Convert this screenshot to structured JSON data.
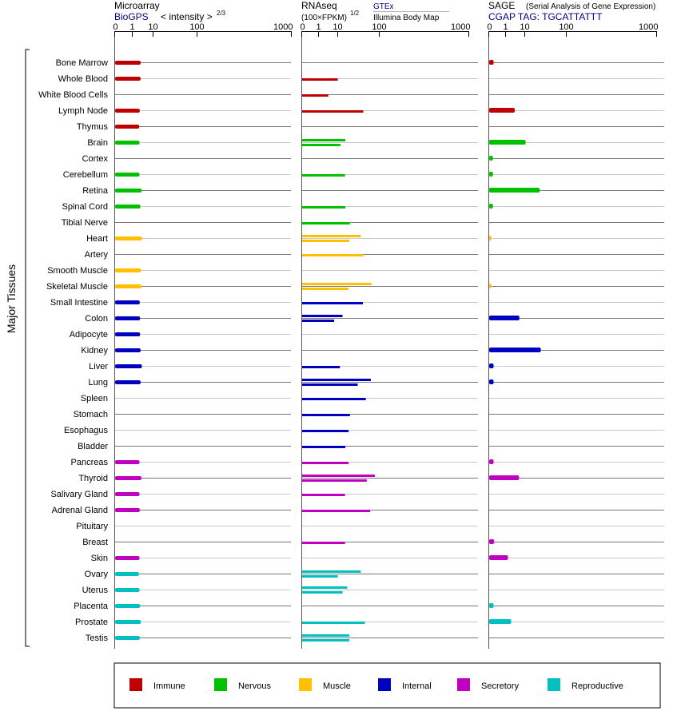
{
  "panels": {
    "microarray": {
      "title": "Microarray",
      "source": "BioGPS",
      "scale_label": "< intensity >",
      "scale_exp": "2/3"
    },
    "rnaseq": {
      "title": "RNAseq",
      "unit": "(100×FPKM)",
      "unit_exp": "1/2",
      "series_top": "GTEx",
      "series_bottom": "Illumina Body Map"
    },
    "sage": {
      "title": "SAGE",
      "subtitle": "(Serial Analysis of Gene Expression)",
      "tag": "CGAP TAG: TGCATTATTT"
    }
  },
  "y_group_label": "Major Tissues",
  "colors": {
    "Immune": "#c00000",
    "Nervous": "#00c000",
    "Muscle": "#ffc000",
    "Internal": "#0000c0",
    "Secretory": "#c000c0",
    "Reproductive": "#00c0c0"
  },
  "legend": [
    {
      "label": "Immune",
      "color": "#c00000"
    },
    {
      "label": "Nervous",
      "color": "#00c000"
    },
    {
      "label": "Muscle",
      "color": "#ffc000"
    },
    {
      "label": "Internal",
      "color": "#0000c0"
    },
    {
      "label": "Secretory",
      "color": "#c000c0"
    },
    {
      "label": "Reproductive",
      "color": "#00c0c0"
    }
  ],
  "chart_data": {
    "type": "bar",
    "orientation": "horizontal",
    "x_scale": "power",
    "tick_labels": [
      "0",
      "1",
      "10",
      "100",
      "1000"
    ],
    "tick_values": [
      0,
      1,
      10,
      100,
      1000
    ],
    "xlim": [
      0,
      1000
    ],
    "categories": [
      "Bone Marrow",
      "Whole Blood",
      "White Blood Cells",
      "Lymph Node",
      "Thymus",
      "Brain",
      "Cortex",
      "Cerebellum",
      "Retina",
      "Spinal Cord",
      "Tibial Nerve",
      "Heart",
      "Artery",
      "Smooth Muscle",
      "Skeletal Muscle",
      "Small Intestine",
      "Colon",
      "Adipocyte",
      "Kidney",
      "Liver",
      "Lung",
      "Spleen",
      "Stomach",
      "Esophagus",
      "Bladder",
      "Pancreas",
      "Thyroid",
      "Salivary Gland",
      "Adrenal Gland",
      "Pituitary",
      "Breast",
      "Skin",
      "Ovary",
      "Uterus",
      "Placenta",
      "Prostate",
      "Testis"
    ],
    "system": [
      "Immune",
      "Immune",
      "Immune",
      "Immune",
      "Immune",
      "Nervous",
      "Nervous",
      "Nervous",
      "Nervous",
      "Nervous",
      "Nervous",
      "Muscle",
      "Muscle",
      "Muscle",
      "Muscle",
      "Internal",
      "Internal",
      "Internal",
      "Internal",
      "Internal",
      "Internal",
      "Internal",
      "Internal",
      "Internal",
      "Internal",
      "Secretory",
      "Secretory",
      "Secretory",
      "Secretory",
      "Secretory",
      "Secretory",
      "Secretory",
      "Reproductive",
      "Reproductive",
      "Reproductive",
      "Reproductive",
      "Reproductive"
    ],
    "series": [
      {
        "name": "BioGPS",
        "panel": "microarray",
        "values": [
          3.3,
          3.3,
          null,
          3.0,
          2.8,
          2.9,
          null,
          2.9,
          3.7,
          3.2,
          null,
          3.8,
          null,
          3.5,
          3.6,
          3.0,
          3.1,
          3.1,
          3.3,
          3.8,
          3.3,
          null,
          null,
          null,
          null,
          2.9,
          3.6,
          2.9,
          3.0,
          null,
          null,
          2.9,
          2.7,
          2.9,
          3.1,
          3.4,
          3.0
        ]
      },
      {
        "name": "GTEx",
        "panel": "rnaseq",
        "values": [
          null,
          10.4,
          null,
          51,
          null,
          18.3,
          null,
          17.9,
          null,
          18.3,
          24.6,
          45,
          null,
          null,
          74,
          50,
          15,
          null,
          null,
          12.3,
          72,
          57.5,
          24.6,
          22.7,
          18.3,
          22.7,
          85,
          null,
          70,
          null,
          17.9,
          null,
          45,
          20.6,
          null,
          55,
          23.7
        ]
      },
      {
        "name": "Illumina Body Map",
        "panel": "rnaseq",
        "values": [
          null,
          null,
          4.2,
          null,
          null,
          12.8,
          null,
          null,
          null,
          null,
          null,
          23.7,
          51,
          null,
          22.7,
          null,
          7.6,
          null,
          null,
          null,
          38.4,
          null,
          null,
          null,
          null,
          null,
          60,
          17.9,
          null,
          null,
          null,
          null,
          10.4,
          15,
          null,
          null,
          23.7
        ]
      },
      {
        "name": "CGAP",
        "panel": "sage",
        "values": [
          0.03,
          null,
          null,
          3.9,
          null,
          10.9,
          0.02,
          0.02,
          28.6,
          0.02,
          null,
          0.005,
          null,
          null,
          0.005,
          null,
          6.3,
          null,
          30.5,
          0.03,
          0.03,
          null,
          null,
          null,
          null,
          0.03,
          6.1,
          null,
          null,
          null,
          0.04,
          1.6,
          null,
          null,
          0.03,
          2.5,
          null
        ]
      }
    ]
  }
}
